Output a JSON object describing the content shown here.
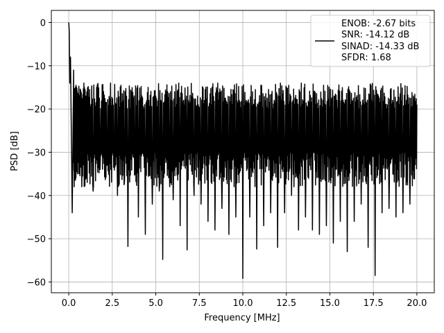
{
  "chart_data": {
    "type": "line",
    "title": "",
    "xlabel": "Frequency [MHz]",
    "ylabel": "PSD [dB]",
    "xlim": [
      -1.0,
      21.0
    ],
    "ylim": [
      -62.5,
      2.8
    ],
    "xticks": [
      0.0,
      2.5,
      5.0,
      7.5,
      10.0,
      12.5,
      15.0,
      17.5,
      20.0
    ],
    "xtick_labels": [
      "0.0",
      "2.5",
      "5.0",
      "7.5",
      "10.0",
      "12.5",
      "15.0",
      "17.5",
      "20.0"
    ],
    "yticks": [
      0,
      -10,
      -20,
      -30,
      -40,
      -50,
      -60
    ],
    "ytick_labels": [
      "0",
      "−10",
      "−20",
      "−30",
      "−40",
      "−50",
      "−60"
    ],
    "grid": true,
    "legend_position": "top-right",
    "legend": {
      "lines": [
        "ENOB: -2.67 bits",
        "SNR: -14.12 dB",
        "SINAD: -14.33 dB",
        "SFDR: 1.68"
      ]
    },
    "line_color": "#000000",
    "series": [
      {
        "description_points_approx": true,
        "x": [
          0.0,
          0.03,
          0.06,
          0.1,
          0.14,
          0.2,
          0.28,
          0.35,
          0.42,
          0.5,
          0.6,
          0.75,
          0.9,
          1.0,
          1.2,
          1.4,
          1.6,
          1.8,
          2.0,
          2.2,
          2.4,
          2.6,
          2.8,
          3.0,
          3.2,
          3.4,
          3.6,
          3.8,
          4.0,
          4.2,
          4.4,
          4.6,
          4.8,
          5.0,
          5.2,
          5.4,
          5.6,
          5.8,
          6.0,
          6.2,
          6.4,
          6.6,
          6.8,
          7.0,
          7.2,
          7.4,
          7.6,
          7.8,
          8.0,
          8.2,
          8.4,
          8.6,
          8.8,
          9.0,
          9.2,
          9.4,
          9.6,
          9.8,
          10.0,
          10.2,
          10.4,
          10.6,
          10.8,
          11.0,
          11.2,
          11.4,
          11.6,
          11.8,
          12.0,
          12.2,
          12.4,
          12.6,
          12.8,
          13.0,
          13.2,
          13.4,
          13.6,
          13.8,
          14.0,
          14.2,
          14.4,
          14.6,
          14.8,
          15.0,
          15.2,
          15.4,
          15.6,
          15.8,
          16.0,
          16.2,
          16.4,
          16.6,
          16.8,
          17.0,
          17.2,
          17.4,
          17.6,
          17.8,
          18.0,
          18.2,
          18.4,
          18.6,
          18.8,
          19.0,
          19.2,
          19.4,
          19.6,
          19.8,
          20.0
        ],
        "y": [
          0.0,
          -2.0,
          -14.0,
          -8.0,
          -22.0,
          -44.0,
          -11.0,
          -32.0,
          -14.5,
          -35.0,
          -17.0,
          -38.0,
          -15.0,
          -36.0,
          -15.5,
          -39.0,
          -15.0,
          -34.0,
          -16.0,
          -33.0,
          -14.0,
          -32.0,
          -40.0,
          -14.5,
          -37.0,
          -51.8,
          -16.0,
          -35.0,
          -45.0,
          -17.0,
          -49.0,
          -18.0,
          -42.0,
          -17.0,
          -39.0,
          -54.8,
          -16.0,
          -38.0,
          -41.0,
          -19.0,
          -47.0,
          -18.0,
          -52.6,
          -18.5,
          -40.0,
          -17.0,
          -42.0,
          -18.0,
          -46.0,
          -19.0,
          -48.0,
          -18.0,
          -43.0,
          -17.5,
          -49.0,
          -19.0,
          -45.0,
          -18.0,
          -59.2,
          -18.0,
          -45.0,
          -19.0,
          -52.4,
          -18.5,
          -47.0,
          -17.5,
          -44.0,
          -18.0,
          -52.0,
          -18.0,
          -44.0,
          -19.0,
          -40.0,
          -17.5,
          -48.0,
          -19.0,
          -45.0,
          -18.5,
          -48.0,
          -19.0,
          -49.0,
          -18.0,
          -47.0,
          -19.5,
          -51.0,
          -18.0,
          -46.0,
          -18.5,
          -53.0,
          -19.0,
          -46.0,
          -18.0,
          -42.0,
          -19.0,
          -52.0,
          -18.0,
          -58.5,
          -17.0,
          -44.0,
          -19.0,
          -43.0,
          -18.0,
          -45.0,
          -19.0,
          -44.0,
          -18.0,
          -42.0,
          -17.0,
          -19.0
        ]
      }
    ]
  }
}
